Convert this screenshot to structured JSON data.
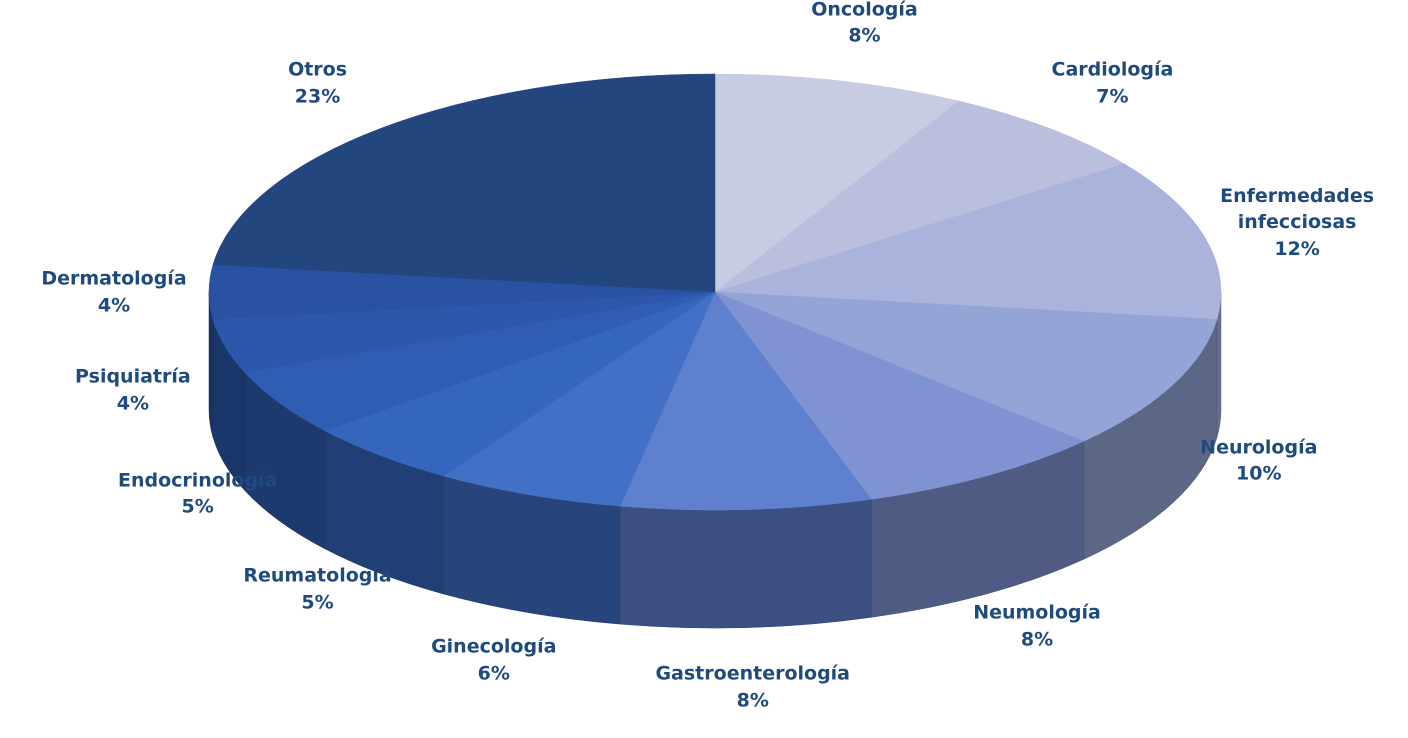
{
  "chart_data": {
    "type": "pie3d",
    "categories": [
      "Oncología",
      "Cardiología",
      "Enfermedades infecciosas",
      "Neurología",
      "Neumología",
      "Gastroenterología",
      "Ginecología",
      "Reumatología",
      "Endocrinología",
      "Psiquiatría",
      "Dermatología",
      "Otros"
    ],
    "values": [
      8,
      7,
      12,
      10,
      8,
      8,
      6,
      5,
      5,
      4,
      4,
      23
    ],
    "value_labels": [
      "8%",
      "7%",
      "12%",
      "10%",
      "8%",
      "8%",
      "6%",
      "5%",
      "5%",
      "4%",
      "4%",
      "23%"
    ],
    "colors": [
      "#c8cce2",
      "#b9bfdd",
      "#a9b3dc",
      "#94a4d6",
      "#7f92d1",
      "#5f7fcf",
      "#4170c6",
      "#3566bd",
      "#2f5db3",
      "#2c57aa",
      "#2a52a2",
      "#24467f"
    ]
  }
}
